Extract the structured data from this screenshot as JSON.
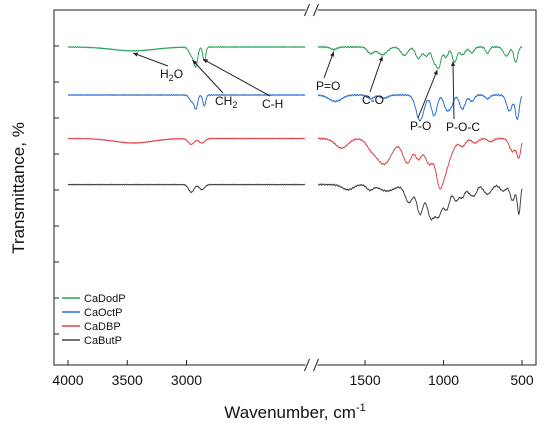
{
  "chart_data": {
    "type": "line",
    "xlabel": "Wavenumber, cm",
    "xlabel_sup": "-1",
    "ylabel": "Transmittance, %",
    "x_axis_breaks": [
      [
        1800,
        2000
      ]
    ],
    "x_axis": {
      "reversed": true,
      "range": [
        4000,
        500
      ]
    },
    "x_ticks": [
      {
        "value": 4000,
        "label": "4000"
      },
      {
        "value": 3500,
        "label": "3500"
      },
      {
        "value": 3000,
        "label": "3000"
      },
      {
        "value": 1500,
        "label": "1500"
      },
      {
        "value": 1000,
        "label": "1000"
      },
      {
        "value": 500,
        "label": "500"
      }
    ],
    "y_ticks_labeled": false,
    "legend": {
      "placement": "bottom-left",
      "entries": [
        {
          "name": "CaDodP",
          "color": "#2ca05a"
        },
        {
          "name": "CaOctP",
          "color": "#2a70d0"
        },
        {
          "name": "CaDBP",
          "color": "#e0474c"
        },
        {
          "name": "CaButP",
          "color": "#444444"
        }
      ]
    },
    "series": [
      {
        "name": "CaDodP",
        "color": "#2ca05a",
        "baseline": 0.0,
        "dips": [
          [
            3450,
            180,
            6
          ],
          [
            2955,
            22,
            14
          ],
          [
            2920,
            15,
            27
          ],
          [
            2850,
            12,
            22
          ],
          [
            1700,
            20,
            4
          ],
          [
            1465,
            20,
            10
          ],
          [
            1390,
            30,
            12
          ],
          [
            1250,
            22,
            13
          ],
          [
            1160,
            18,
            18
          ],
          [
            1110,
            16,
            14
          ],
          [
            1060,
            15,
            22
          ],
          [
            1030,
            14,
            30
          ],
          [
            985,
            15,
            16
          ],
          [
            930,
            14,
            24
          ],
          [
            880,
            18,
            12
          ],
          [
            820,
            15,
            9
          ],
          [
            720,
            12,
            10
          ],
          [
            600,
            18,
            14
          ],
          [
            540,
            12,
            24
          ]
        ]
      },
      {
        "name": "CaOctP",
        "color": "#2a70d0",
        "baseline": 75.0,
        "dips": [
          [
            2955,
            20,
            10
          ],
          [
            2920,
            14,
            20
          ],
          [
            2850,
            12,
            17
          ],
          [
            1690,
            40,
            10
          ],
          [
            1465,
            20,
            6
          ],
          [
            1380,
            25,
            5
          ],
          [
            1150,
            25,
            40
          ],
          [
            1060,
            18,
            32
          ],
          [
            980,
            18,
            22
          ],
          [
            950,
            15,
            14
          ],
          [
            880,
            18,
            22
          ],
          [
            820,
            15,
            10
          ],
          [
            720,
            15,
            6
          ],
          [
            580,
            18,
            25
          ],
          [
            530,
            12,
            38
          ]
        ]
      },
      {
        "name": "CaDBP",
        "color": "#e0474c",
        "baseline": 143.0,
        "dips": [
          [
            3450,
            160,
            7
          ],
          [
            2960,
            25,
            9
          ],
          [
            2870,
            25,
            7
          ],
          [
            1650,
            40,
            15
          ],
          [
            1465,
            30,
            10
          ],
          [
            1380,
            50,
            40
          ],
          [
            1230,
            30,
            38
          ],
          [
            1160,
            20,
            28
          ],
          [
            1090,
            30,
            40
          ],
          [
            1030,
            20,
            48
          ],
          [
            1000,
            25,
            42
          ],
          [
            960,
            30,
            22
          ],
          [
            880,
            20,
            12
          ],
          [
            800,
            20,
            7
          ],
          [
            700,
            18,
            5
          ],
          [
            560,
            20,
            20
          ],
          [
            520,
            12,
            28
          ]
        ]
      },
      {
        "name": "CaButP",
        "color": "#444444",
        "baseline": 215.0,
        "dips": [
          [
            2960,
            22,
            12
          ],
          [
            2870,
            22,
            8
          ],
          [
            1610,
            35,
            8
          ],
          [
            1470,
            20,
            8
          ],
          [
            1360,
            50,
            10
          ],
          [
            1220,
            25,
            28
          ],
          [
            1150,
            20,
            45
          ],
          [
            1080,
            25,
            52
          ],
          [
            1030,
            20,
            42
          ],
          [
            980,
            20,
            38
          ],
          [
            920,
            18,
            25
          ],
          [
            880,
            15,
            18
          ],
          [
            830,
            20,
            14
          ],
          [
            800,
            15,
            12
          ],
          [
            720,
            25,
            15
          ],
          [
            620,
            20,
            10
          ],
          [
            560,
            15,
            25
          ],
          [
            520,
            10,
            45
          ]
        ]
      }
    ],
    "annotations": [
      {
        "text": "H",
        "sub": "2",
        "tail": "O",
        "target_x": 3450,
        "series": "CaDodP"
      },
      {
        "text": "CH",
        "sub": "2",
        "tail": "",
        "target_x": 2950,
        "series": "CaDodP"
      },
      {
        "text": "C-H",
        "sub": "",
        "tail": "",
        "target_x": 2860,
        "series": "CaDodP"
      },
      {
        "text": "P=O",
        "sub": "",
        "tail": "",
        "target_x": 1700,
        "series": "CaDodP"
      },
      {
        "text": "C-O",
        "sub": "",
        "tail": "",
        "target_x": 1390,
        "series": "CaDodP"
      },
      {
        "text": "P-O",
        "sub": "",
        "tail": "",
        "target_x": 1040,
        "series": "CaDodP"
      },
      {
        "text": "P-O-C",
        "sub": "",
        "tail": "",
        "target_x": 940,
        "series": "CaDodP"
      }
    ]
  }
}
